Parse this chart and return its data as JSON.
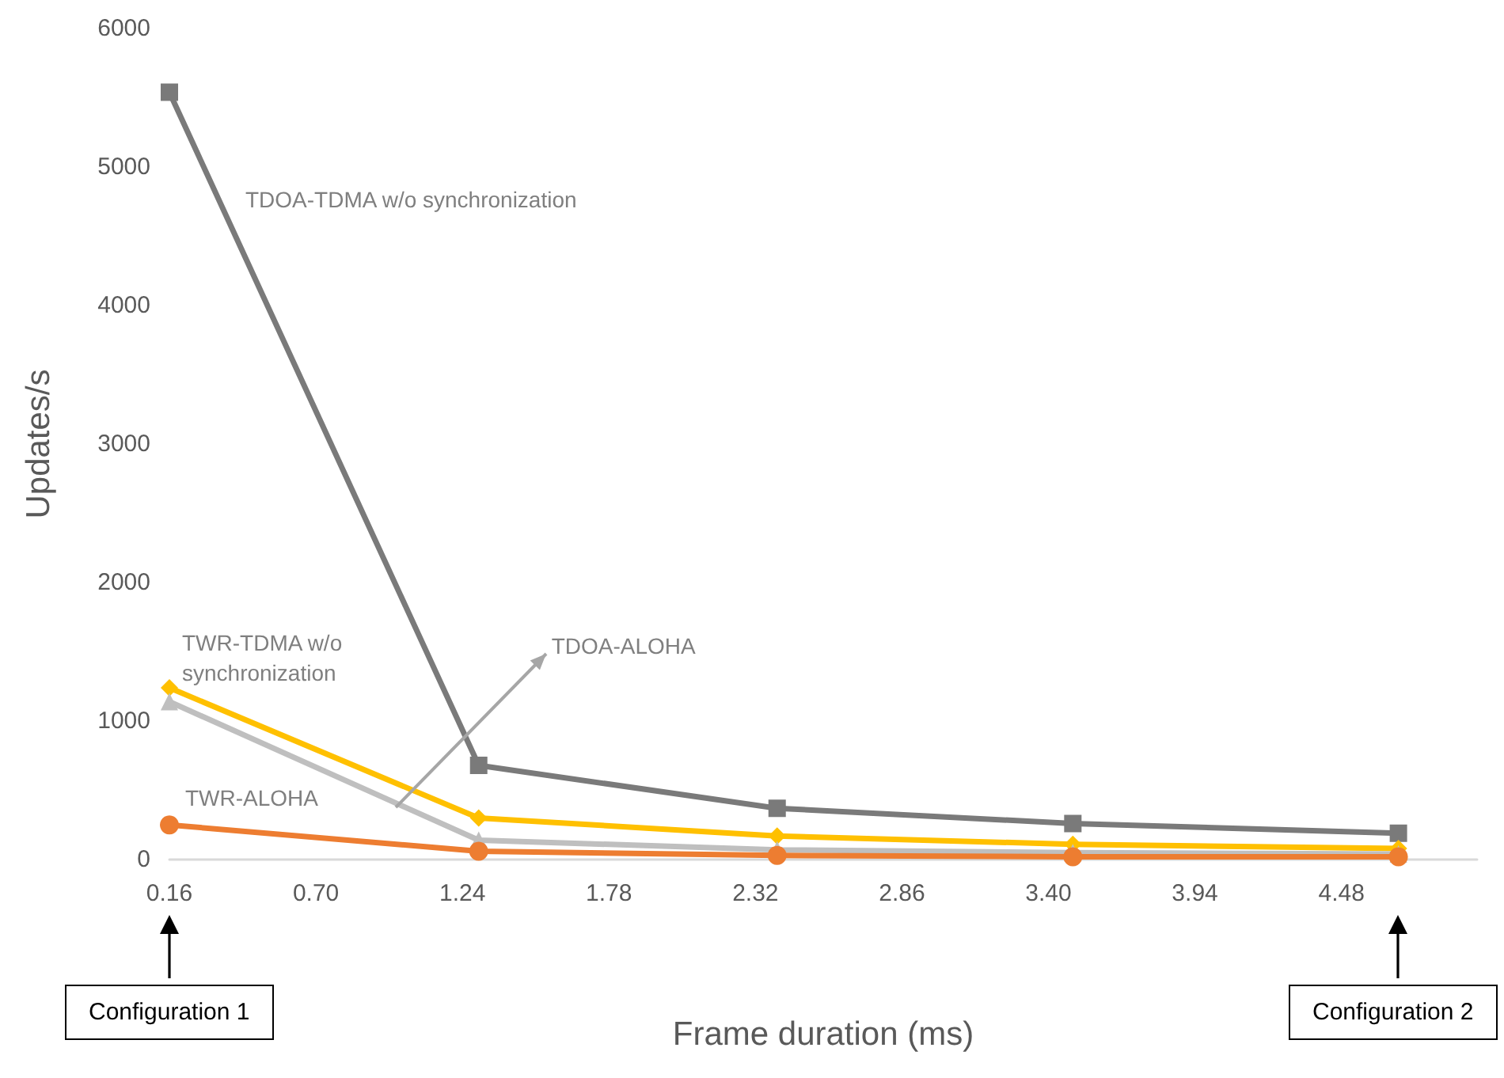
{
  "chart_data": {
    "type": "line",
    "xlabel": "Frame duration (ms)",
    "ylabel": "Updates/s",
    "x": [
      0.16,
      1.3,
      2.4,
      3.49,
      4.69
    ],
    "series": [
      {
        "name": "TDOA-TDMA w/o synchronization",
        "color": "#7a7a7a",
        "marker": "square",
        "values": [
          5540,
          680,
          370,
          260,
          190
        ]
      },
      {
        "name": "TWR-TDMA w/o synchronization",
        "color": "#ffc000",
        "marker": "diamond",
        "values": [
          1240,
          300,
          170,
          110,
          80
        ]
      },
      {
        "name": "TDOA-ALOHA",
        "color": "#bfbfbf",
        "marker": "triangle",
        "values": [
          1140,
          140,
          70,
          50,
          40
        ]
      },
      {
        "name": "TWR-ALOHA",
        "color": "#ed7d31",
        "marker": "circle",
        "values": [
          250,
          60,
          30,
          20,
          20
        ]
      }
    ],
    "xlim": [
      0.16,
      4.98
    ],
    "xticks": [
      0.16,
      {
        "value": 0.7,
        "label": "0.70"
      },
      1.24,
      1.78,
      2.32,
      2.86,
      {
        "value": 3.4,
        "label": "3.40"
      },
      3.94,
      4.48
    ],
    "ylim": [
      0,
      6000
    ],
    "yticks": [
      0,
      1000,
      2000,
      3000,
      4000,
      5000,
      6000
    ],
    "annotations": [
      "Configuration 1",
      "Configuration 2"
    ],
    "grid": false,
    "legend": false,
    "line_style": "solid"
  }
}
